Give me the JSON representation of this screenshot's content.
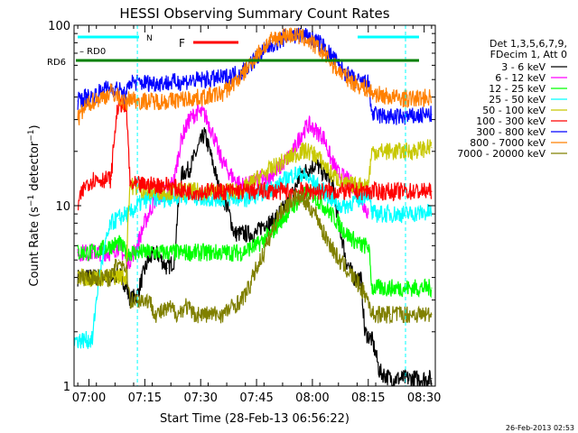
{
  "chart_data": {
    "type": "line",
    "title": "HESSI Observing Summary Count Rates",
    "xlabel": "Start Time (28-Feb-13 06:56:22)",
    "ylabel": "Count Rate (s⁻¹ detector⁻¹)",
    "yscale": "log",
    "ylim": [
      1,
      100
    ],
    "xlim_minutes_after_0656": [
      0,
      97
    ],
    "x_ticks": [
      "07:00",
      "07:15",
      "07:30",
      "07:45",
      "08:00",
      "08:15",
      "08:30"
    ],
    "y_ticks": [
      "1",
      "10",
      "100"
    ],
    "legend_title": [
      "Det 1,3,5,6,7,9,",
      "FDecim 1, Att 0"
    ],
    "legend_position": "right",
    "timestamp": "26-Feb-2013 02:53",
    "markers": {
      "N_label": "N",
      "F_label": "F",
      "RD0_label": "RD0",
      "RD6_label": "RD6",
      "N_color": "#00ffff",
      "F_color": "#ff0000",
      "RD6_color": "#008000",
      "RD0_color": "#008000"
    },
    "series": [
      {
        "name": "3 - 6 keV",
        "color": "#000000",
        "x": [
          1,
          5,
          10,
          12,
          14,
          15,
          17,
          20,
          22,
          25,
          27,
          29,
          31,
          33,
          35,
          37,
          39,
          41,
          43,
          45,
          47,
          49,
          51,
          53,
          55,
          57,
          59,
          61,
          63,
          65,
          67,
          69,
          71,
          73,
          75,
          77,
          78,
          80,
          82,
          85,
          88,
          92,
          96
        ],
        "y": [
          4,
          4,
          4,
          4.2,
          3.6,
          3.0,
          3.2,
          5,
          5.5,
          4.5,
          5,
          15,
          16,
          20,
          25,
          18,
          12,
          10,
          7,
          7,
          7,
          7,
          8,
          8,
          9,
          10,
          12,
          15,
          16,
          17,
          15,
          14,
          8,
          5,
          4,
          4,
          2,
          1.8,
          1.2,
          1.1,
          1.1,
          1.1,
          1.1
        ]
      },
      {
        "name": "6 - 12 keV",
        "color": "#ff00ff",
        "x": [
          1,
          5,
          10,
          12,
          14,
          15,
          17,
          20,
          22,
          25,
          27,
          29,
          31,
          33,
          35,
          37,
          39,
          41,
          43,
          45,
          47,
          49,
          51,
          53,
          55,
          57,
          59,
          61,
          63,
          65,
          67,
          69,
          71,
          73,
          75,
          77,
          79
        ],
        "y": [
          5.5,
          5.5,
          5.5,
          6,
          5,
          5,
          6,
          9,
          11,
          12,
          14,
          24,
          30,
          33,
          32,
          26,
          19,
          16,
          14,
          13,
          13,
          14,
          14,
          15,
          16,
          18,
          20,
          25,
          28,
          26,
          24,
          18,
          15,
          14,
          13,
          11,
          9
        ]
      },
      {
        "name": "12 - 25 keV",
        "color": "#00ff00",
        "x": [
          1,
          5,
          10,
          12,
          14,
          15,
          17,
          20,
          25,
          30,
          35,
          40,
          45,
          47,
          49,
          51,
          53,
          55,
          57,
          59,
          61,
          63,
          65,
          67,
          69,
          71,
          73,
          75,
          77,
          79,
          80,
          85,
          90,
          96
        ],
        "y": [
          5.5,
          5.5,
          6,
          6.2,
          5.5,
          5.5,
          5.5,
          5.5,
          5.5,
          5.5,
          5.5,
          5.5,
          5.5,
          5.8,
          6,
          6.5,
          7,
          8,
          9,
          10,
          11,
          12,
          11,
          10,
          9,
          8,
          7,
          6.5,
          6,
          6,
          3.5,
          3.5,
          3.5,
          3.5
        ]
      },
      {
        "name": "25 - 50 keV",
        "color": "#00ffff",
        "x": [
          0,
          5,
          10,
          12,
          14,
          15,
          17,
          20,
          25,
          30,
          35,
          40,
          45,
          47,
          49,
          51,
          53,
          55,
          57,
          59,
          61,
          63,
          65,
          67,
          69,
          71,
          73,
          75,
          77,
          79,
          80,
          85,
          90,
          96
        ],
        "y": [
          1.8,
          1.8,
          8,
          8.5,
          9,
          9,
          10,
          11,
          11,
          11.5,
          11,
          11,
          11,
          11,
          11.5,
          12,
          12.5,
          13,
          14,
          15,
          15,
          14,
          13,
          12,
          11,
          10,
          10,
          10.5,
          11,
          12,
          9,
          9,
          9,
          9.2
        ]
      },
      {
        "name": "50 - 100 keV",
        "color": "#c8c800",
        "x": [
          1,
          5,
          10,
          12,
          14,
          15,
          17,
          20,
          25,
          30,
          35,
          40,
          45,
          47,
          49,
          51,
          53,
          55,
          57,
          59,
          61,
          63,
          65,
          67,
          69,
          71,
          73,
          75,
          77,
          79,
          80,
          85,
          90,
          96
        ],
        "y": [
          4,
          4,
          4,
          4.1,
          4,
          13,
          12.5,
          12,
          12,
          12,
          12,
          12,
          12,
          13,
          14,
          15,
          16,
          17,
          18,
          19,
          20,
          20,
          19,
          17,
          15,
          14,
          13,
          13,
          13,
          13,
          20,
          20,
          20,
          21
        ]
      },
      {
        "name": "100 - 300 keV",
        "color": "#ff0000",
        "x": [
          1,
          3,
          5,
          8,
          10,
          12,
          14,
          15,
          17,
          20,
          25,
          30,
          35,
          40,
          45,
          50,
          55,
          60,
          65,
          70,
          75,
          78,
          80,
          85,
          90,
          96
        ],
        "y": [
          10,
          13,
          14,
          14,
          14,
          38,
          34,
          13,
          13,
          13,
          13,
          12,
          12,
          12,
          12,
          12,
          12,
          12,
          12,
          12,
          12,
          12,
          12,
          12,
          12,
          12
        ]
      },
      {
        "name": "300 - 800 keV",
        "color": "#0000ff",
        "x": [
          1,
          3,
          5,
          8,
          10,
          12,
          14,
          15,
          17,
          20,
          25,
          30,
          35,
          40,
          45,
          47,
          49,
          51,
          53,
          55,
          57,
          59,
          61,
          63,
          65,
          67,
          69,
          71,
          73,
          75,
          77,
          79,
          80,
          85,
          90,
          96
        ],
        "y": [
          38,
          40,
          40,
          44,
          45,
          44,
          40,
          49,
          48,
          48,
          48,
          49,
          50,
          51,
          55,
          60,
          66,
          72,
          78,
          82,
          86,
          88,
          88,
          86,
          82,
          76,
          68,
          60,
          54,
          50,
          48,
          48,
          32,
          31,
          31,
          32
        ]
      },
      {
        "name": "800 - 7000 keV",
        "color": "#ff8000",
        "x": [
          1,
          3,
          5,
          8,
          10,
          12,
          14,
          15,
          17,
          20,
          25,
          30,
          35,
          40,
          45,
          47,
          49,
          51,
          53,
          55,
          57,
          59,
          61,
          63,
          65,
          67,
          69,
          71,
          73,
          75,
          77,
          79,
          80,
          85,
          90,
          96
        ],
        "y": [
          30,
          35,
          38,
          40,
          43,
          40,
          36,
          40,
          38,
          38,
          38,
          39,
          40,
          42,
          52,
          60,
          68,
          76,
          82,
          86,
          88,
          88,
          86,
          82,
          76,
          70,
          62,
          56,
          52,
          48,
          46,
          44,
          42,
          40,
          39,
          40
        ]
      },
      {
        "name": "7000 - 20000 keV",
        "color": "#808000",
        "x": [
          1,
          5,
          10,
          12,
          14,
          15,
          17,
          20,
          22,
          24,
          26,
          28,
          30,
          32,
          35,
          40,
          45,
          47,
          49,
          51,
          53,
          55,
          57,
          59,
          61,
          63,
          65,
          67,
          69,
          71,
          73,
          75,
          77,
          79,
          80,
          85,
          90,
          96
        ],
        "y": [
          4,
          4,
          4,
          5,
          4.5,
          3,
          3,
          3,
          2.5,
          2.6,
          2.7,
          2.5,
          2.8,
          2.5,
          2.5,
          2.5,
          3,
          3.5,
          4.5,
          5.5,
          7,
          9,
          10,
          11,
          11,
          10,
          9,
          7,
          6,
          5,
          4.5,
          4,
          3.5,
          3,
          2.5,
          2.5,
          2.5,
          2.5
        ]
      }
    ]
  }
}
